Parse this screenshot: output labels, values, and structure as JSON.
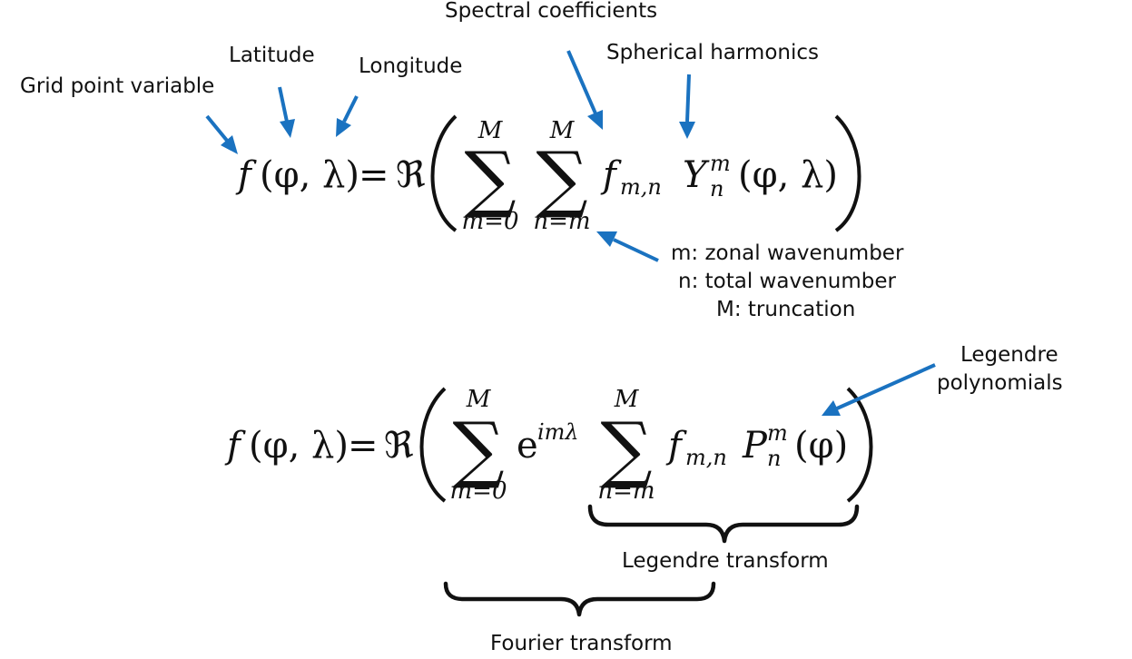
{
  "labels": {
    "grid_point_variable": "Grid point variable",
    "latitude": "Latitude",
    "longitude": "Longitude",
    "spectral_coefficients": "Spectral coefficients",
    "spherical_harmonics": "Spherical harmonics",
    "m_desc": "m: zonal wavenumber",
    "n_desc": "n: total wavenumber",
    "M_desc": "M: truncation",
    "legendre_polynomials_line1": "Legendre",
    "legendre_polynomials_line2": "polynomials",
    "legendre_transform": "Legendre transform",
    "fourier_transform": "Fourier transform"
  },
  "equation1": {
    "lhs_f": "f",
    "lhs_args": "(φ, λ)",
    "equals": "=",
    "real": "ℜ",
    "sum1_upper": "M",
    "sum1_lower": "m=0",
    "sum2_upper": "M",
    "sum2_lower": "n=m",
    "sigma": "∑",
    "coef": "f",
    "coef_sub": "m,n",
    "harmonic": "Y",
    "harmonic_sup": "m",
    "harmonic_sub": "n",
    "harmonic_args": "(φ, λ)"
  },
  "equation2": {
    "lhs_f": "f",
    "lhs_args": "(φ, λ)",
    "equals": "=",
    "real": "ℜ",
    "sum1_upper": "M",
    "sum1_lower": "m=0",
    "exp_base": "e",
    "exp_power": "imλ",
    "sum2_upper": "M",
    "sum2_lower": "n=m",
    "sigma": "∑",
    "coef": "f",
    "coef_sub": "m,n",
    "poly": "P",
    "poly_sup": "m",
    "poly_sub": "n",
    "poly_args": "(φ)"
  },
  "colors": {
    "arrow": "#1a72c0",
    "text": "#111111"
  }
}
